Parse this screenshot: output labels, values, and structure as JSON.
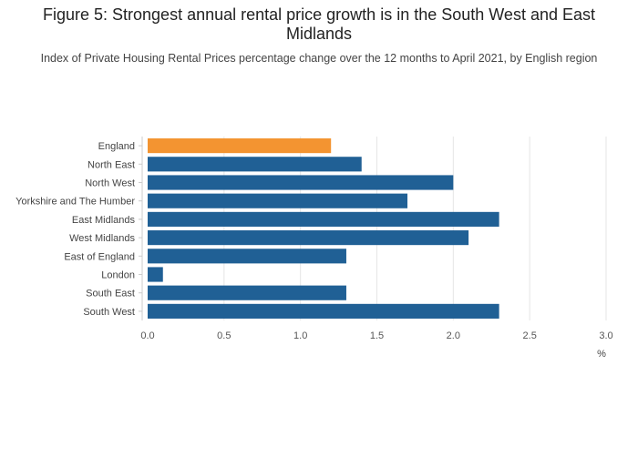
{
  "title": "Figure 5: Strongest annual rental price growth is in the South West and East Midlands",
  "subtitle": "Index of Private Housing Rental Prices percentage change over the 12 months to April 2021, by English region",
  "colors": {
    "highlight": "#f39431",
    "bar": "#206095",
    "grid": "#e6e6e6",
    "axis": "#cccccc"
  },
  "chart_data": {
    "type": "bar",
    "orientation": "horizontal",
    "categories": [
      "England",
      "North East",
      "North West",
      "Yorkshire and The Humber",
      "East Midlands",
      "West Midlands",
      "East of England",
      "London",
      "South East",
      "South West"
    ],
    "values": [
      1.2,
      1.4,
      2.0,
      1.7,
      2.3,
      2.1,
      1.3,
      0.1,
      1.3,
      2.3
    ],
    "highlight_category": "England",
    "xlabel": "%",
    "xlim": [
      0,
      3.0
    ],
    "xticks": [
      "0.0",
      "0.5",
      "1.0",
      "1.5",
      "2.0",
      "2.5",
      "3.0"
    ],
    "grid": true
  }
}
